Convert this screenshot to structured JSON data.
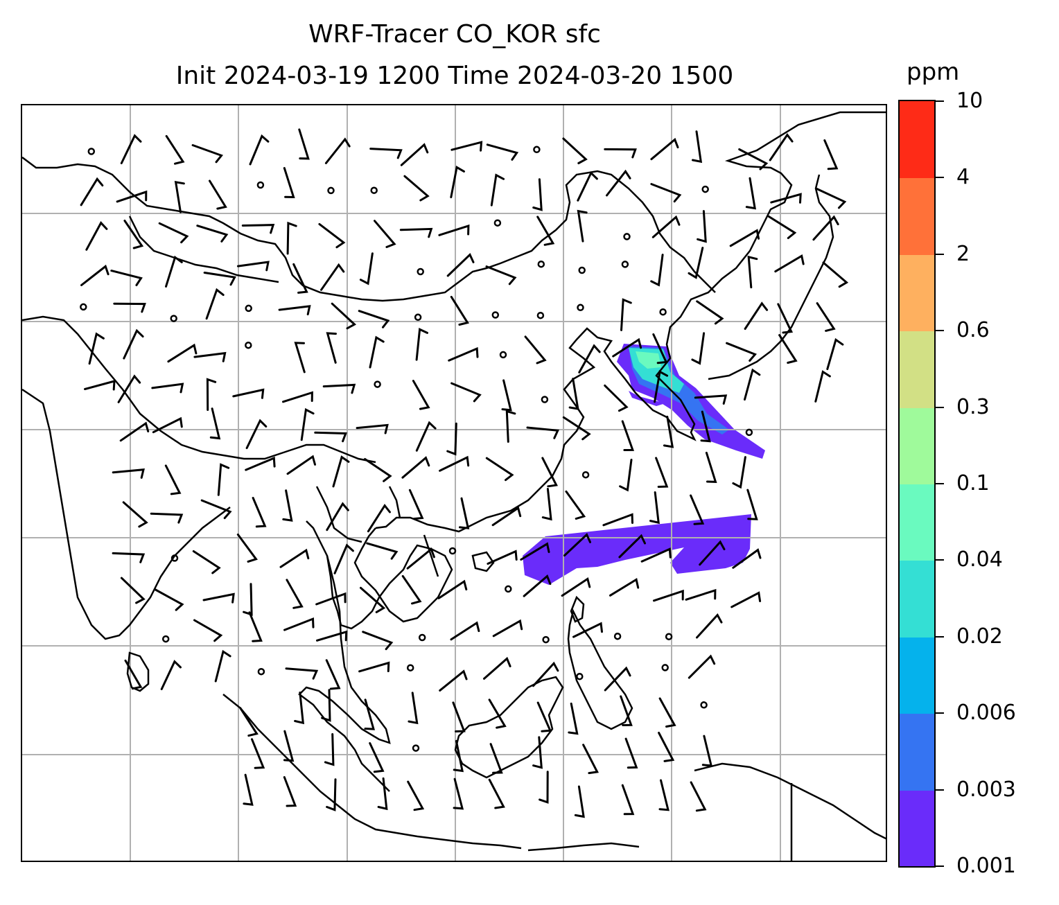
{
  "title": {
    "line1": "WRF-Tracer CO_KOR sfc",
    "line2": "Init 2024-03-19 1200 Time 2024-03-20 1500"
  },
  "colorbar": {
    "unit": "ppm",
    "levels": [
      "0.001",
      "0.003",
      "0.006",
      "0.02",
      "0.04",
      "0.1",
      "0.3",
      "0.6",
      "2",
      "4",
      "10"
    ],
    "colors": [
      "#6a2cfa",
      "#3574f2",
      "#05b2ec",
      "#34dfd4",
      "#6afabf",
      "#9ffa9b",
      "#d2e085",
      "#feb05f",
      "#ff7139",
      "#fe2b17"
    ]
  },
  "map": {
    "gridlines": true,
    "plume_colors": {
      "low": "#6a2cfa",
      "mid": "#3574f2",
      "cyan": "#34dfd4",
      "green": "#6afabf"
    }
  }
}
